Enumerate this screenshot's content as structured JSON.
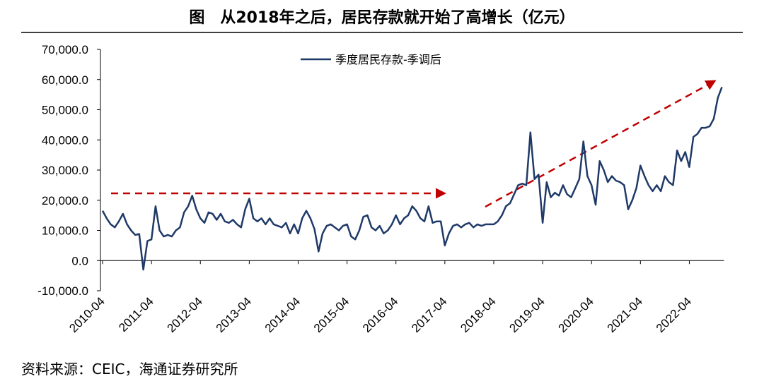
{
  "title": "图　从2018年之后，居民存款就开始了高增长（亿元）",
  "source": "资料来源：CEIC，海通证券研究所",
  "chart_data": {
    "type": "line",
    "categories": [
      "2010-04",
      null,
      null,
      null,
      null,
      null,
      null,
      null,
      null,
      null,
      null,
      null,
      "2011-04",
      null,
      null,
      null,
      null,
      null,
      null,
      null,
      null,
      null,
      null,
      null,
      "2012-04",
      null,
      null,
      null,
      null,
      null,
      null,
      null,
      null,
      null,
      null,
      null,
      "2013-04",
      null,
      null,
      null,
      null,
      null,
      null,
      null,
      null,
      null,
      null,
      null,
      "2014-04",
      null,
      null,
      null,
      null,
      null,
      null,
      null,
      null,
      null,
      null,
      null,
      "2015-04",
      null,
      null,
      null,
      null,
      null,
      null,
      null,
      null,
      null,
      null,
      null,
      "2016-04",
      null,
      null,
      null,
      null,
      null,
      null,
      null,
      null,
      null,
      null,
      null,
      "2017-04",
      null,
      null,
      null,
      null,
      null,
      null,
      null,
      null,
      null,
      null,
      null,
      "2018-04",
      null,
      null,
      null,
      null,
      null,
      null,
      null,
      null,
      null,
      null,
      null,
      "2019-04",
      null,
      null,
      null,
      null,
      null,
      null,
      null,
      null,
      null,
      null,
      null,
      "2020-04",
      null,
      null,
      null,
      null,
      null,
      null,
      null,
      null,
      null,
      null,
      null,
      "2021-04",
      null,
      null,
      null,
      null,
      null,
      null,
      null,
      null,
      null,
      null,
      null,
      "2022-04",
      null,
      null,
      null,
      null,
      null,
      null,
      null,
      null
    ],
    "series": [
      {
        "name": "季度居民存款-季调后",
        "color": "#1f3a68",
        "values": [
          16500,
          14000,
          12000,
          11000,
          13000,
          15500,
          12000,
          10000,
          8500,
          8800,
          -3000,
          6500,
          7000,
          18000,
          10000,
          8000,
          8500,
          8000,
          10000,
          11000,
          16000,
          18000,
          21500,
          17000,
          14000,
          12500,
          16000,
          15500,
          13500,
          15500,
          13000,
          12500,
          13500,
          12000,
          11000,
          17000,
          20500,
          14000,
          13000,
          14000,
          12000,
          14000,
          12000,
          11500,
          11000,
          12500,
          9000,
          12000,
          9000,
          14000,
          16500,
          14000,
          10500,
          3000,
          9000,
          11500,
          12000,
          11000,
          10000,
          11500,
          12000,
          8000,
          7000,
          10000,
          14500,
          15000,
          11000,
          10000,
          11500,
          9000,
          10000,
          12000,
          15000,
          12000,
          14000,
          15000,
          18000,
          16500,
          14000,
          13000,
          18000,
          12500,
          13000,
          13000,
          5000,
          9000,
          11500,
          12000,
          11000,
          12000,
          12500,
          11000,
          12000,
          11500,
          12000,
          12000,
          12000,
          13000,
          15000,
          18000,
          19000,
          22000,
          25000,
          25500,
          25000,
          42500,
          27000,
          28500,
          12500,
          26000,
          21000,
          22500,
          21500,
          25000,
          22000,
          21000,
          24000,
          27000,
          39500,
          28000,
          25000,
          18500,
          33000,
          30000,
          26000,
          28000,
          26500,
          26000,
          25000,
          17000,
          20000,
          24000,
          31500,
          28000,
          25000,
          23000,
          25000,
          23000,
          28000,
          26000,
          25000,
          36500,
          33000,
          36000,
          31000,
          41000,
          42000,
          44000,
          44000,
          44500,
          47000,
          54000,
          57500
        ]
      }
    ],
    "ylim": [
      -10000,
      70000
    ],
    "yticks": [
      {
        "value": -10000,
        "label": "-10,000.0"
      },
      {
        "value": 0,
        "label": "0.0"
      },
      {
        "value": 10000,
        "label": "10,000.0"
      },
      {
        "value": 20000,
        "label": "20,000.0"
      },
      {
        "value": 30000,
        "label": "30,000.0"
      },
      {
        "value": 40000,
        "label": "40,000.0"
      },
      {
        "value": 50000,
        "label": "50,000.0"
      },
      {
        "value": 60000,
        "label": "60,000.0"
      },
      {
        "value": 70000,
        "label": "70,000.0"
      }
    ],
    "legend": "top"
  }
}
